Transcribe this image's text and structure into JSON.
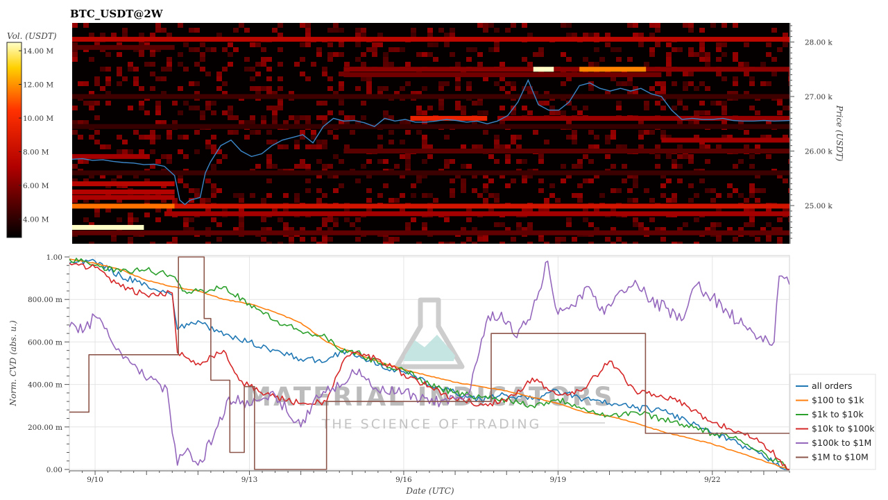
{
  "chart_data": [
    {
      "type": "heatmap",
      "title": "BTC_USDT@2W",
      "ylabel": "Price (USDT)",
      "colorbar_label": "Vol. (USDT)",
      "ylim": [
        24300,
        28350
      ],
      "y_ticks": [
        {
          "value": 25000,
          "label": "25.00 k"
        },
        {
          "value": 26000,
          "label": "26.00 k"
        },
        {
          "value": 27000,
          "label": "27.00 k"
        },
        {
          "value": 28000,
          "label": "28.00 k"
        }
      ],
      "colorbar_range": [
        2900000,
        14500000
      ],
      "colorbar_ticks": [
        {
          "value": 4000000,
          "label": "4.00 M"
        },
        {
          "value": 6000000,
          "label": "6.00 M"
        },
        {
          "value": 8000000,
          "label": "8.00 M"
        },
        {
          "value": 10000000,
          "label": "10.00 M"
        },
        {
          "value": 12000000,
          "label": "12.00 M"
        },
        {
          "value": 14000000,
          "label": "14.00 M"
        }
      ],
      "price_line": {
        "color": "#3a86c8",
        "x": [
          9.5,
          9.7,
          9.9,
          10.1,
          10.3,
          10.5,
          10.7,
          10.9,
          11.1,
          11.3,
          11.5,
          11.6,
          11.7,
          11.8,
          12.0,
          12.1,
          12.2,
          12.4,
          12.6,
          12.8,
          13.0,
          13.2,
          13.4,
          13.6,
          13.8,
          14.0,
          14.2,
          14.4,
          14.6,
          14.8,
          15.0,
          15.2,
          15.4,
          15.6,
          15.8,
          16.0,
          16.2,
          16.4,
          16.6,
          16.8,
          17.0,
          17.2,
          17.4,
          17.6,
          17.8,
          18.0,
          18.2,
          18.4,
          18.6,
          18.8,
          19.0,
          19.2,
          19.4,
          19.6,
          19.8,
          20.0,
          20.2,
          20.4,
          20.6,
          20.8,
          21.0,
          21.2,
          21.4,
          21.6,
          21.8,
          22.0,
          22.2,
          22.4,
          22.6,
          22.8,
          23.0,
          23.2,
          23.5
        ],
        "y": [
          25850,
          25860,
          25830,
          25840,
          25810,
          25790,
          25780,
          25750,
          25760,
          25720,
          25550,
          25100,
          25020,
          25100,
          25150,
          25600,
          25800,
          26100,
          26200,
          26000,
          25900,
          25950,
          26100,
          26200,
          26250,
          26300,
          26150,
          26450,
          26600,
          26550,
          26560,
          26520,
          26450,
          26600,
          26550,
          26580,
          26530,
          26530,
          26550,
          26580,
          26560,
          26530,
          26550,
          26500,
          26550,
          26650,
          26900,
          27300,
          26850,
          26750,
          26750,
          26900,
          27200,
          27250,
          27150,
          27100,
          27150,
          27100,
          27150,
          27050,
          27000,
          26750,
          26580,
          26600,
          26580,
          26580,
          26600,
          26560,
          26550,
          26550,
          26560,
          26550,
          26560
        ]
      },
      "volume_bands": [
        {
          "price": 28050,
          "x_from": 9.5,
          "x_to": 23.5,
          "volume": 7600000
        },
        {
          "price": 27900,
          "x_from": 9.5,
          "x_to": 11.5,
          "volume": 5000000
        },
        {
          "price": 27500,
          "x_from": 14.8,
          "x_to": 23.5,
          "volume": 6200000
        },
        {
          "price": 27500,
          "x_from": 18.5,
          "x_to": 18.9,
          "volume": 14500000
        },
        {
          "price": 27500,
          "x_from": 19.4,
          "x_to": 20.7,
          "volume": 11800000
        },
        {
          "price": 27400,
          "x_from": 14.8,
          "x_to": 21.0,
          "volume": 5600000
        },
        {
          "price": 27000,
          "x_from": 9.5,
          "x_to": 23.5,
          "volume": 4400000
        },
        {
          "price": 26600,
          "x_from": 17.8,
          "x_to": 23.5,
          "volume": 6500000
        },
        {
          "price": 26600,
          "x_from": 16.1,
          "x_to": 17.6,
          "volume": 9500000
        },
        {
          "price": 26450,
          "x_from": 9.5,
          "x_to": 23.5,
          "volume": 4200000
        },
        {
          "price": 26200,
          "x_from": 21.0,
          "x_to": 23.5,
          "volume": 6700000
        },
        {
          "price": 26000,
          "x_from": 14.8,
          "x_to": 23.5,
          "volume": 5000000
        },
        {
          "price": 25900,
          "x_from": 9.5,
          "x_to": 11.0,
          "volume": 6800000
        },
        {
          "price": 25600,
          "x_from": 9.5,
          "x_to": 23.5,
          "volume": 4300000
        },
        {
          "price": 25400,
          "x_from": 9.5,
          "x_to": 11.5,
          "volume": 7500000
        },
        {
          "price": 25250,
          "x_from": 9.5,
          "x_to": 11.5,
          "volume": 7200000
        },
        {
          "price": 25150,
          "x_from": 9.5,
          "x_to": 11.5,
          "volume": 7000000
        },
        {
          "price": 24990,
          "x_from": 9.5,
          "x_to": 11.5,
          "volume": 11500000
        },
        {
          "price": 24990,
          "x_from": 11.5,
          "x_to": 23.5,
          "volume": 8500000
        },
        {
          "price": 24850,
          "x_from": 11.3,
          "x_to": 23.5,
          "volume": 6800000
        },
        {
          "price": 24600,
          "x_from": 9.5,
          "x_to": 10.9,
          "volume": 14500000
        },
        {
          "price": 24500,
          "x_from": 9.5,
          "x_to": 23.5,
          "volume": 5200000
        }
      ]
    },
    {
      "type": "line",
      "xlabel": "Date (UTC)",
      "ylabel": "Norm. CVD (abs. u.)",
      "xlim": [
        9.5,
        23.5
      ],
      "ylim": [
        0,
        1
      ],
      "x_ticks": [
        {
          "value": 10,
          "label": "9/10"
        },
        {
          "value": 13,
          "label": "9/13"
        },
        {
          "value": 16,
          "label": "9/16"
        },
        {
          "value": 19,
          "label": "9/19"
        },
        {
          "value": 22,
          "label": "9/22"
        }
      ],
      "y_ticks": [
        {
          "value": 0,
          "label": "0.00"
        },
        {
          "value": 0.2,
          "label": "200.00 m"
        },
        {
          "value": 0.4,
          "label": "400.00 m"
        },
        {
          "value": 0.6,
          "label": "600.00 m"
        },
        {
          "value": 0.8,
          "label": "800.00 m"
        },
        {
          "value": 1,
          "label": "1.00"
        }
      ],
      "grid": true,
      "legend": "right",
      "series": [
        {
          "name": "all orders",
          "color": "#1f77b4",
          "x": [
            9.5,
            10.0,
            10.5,
            11.0,
            11.5,
            11.6,
            12.0,
            12.5,
            13.0,
            13.5,
            14.0,
            14.5,
            14.8,
            15.0,
            15.5,
            16.0,
            16.5,
            17.0,
            17.5,
            18.0,
            18.5,
            19.0,
            19.5,
            20.0,
            20.5,
            21.0,
            21.5,
            22.0,
            22.5,
            23.0,
            23.5
          ],
          "y": [
            0.97,
            0.98,
            0.91,
            0.87,
            0.82,
            0.66,
            0.7,
            0.63,
            0.6,
            0.56,
            0.52,
            0.51,
            0.56,
            0.55,
            0.49,
            0.46,
            0.4,
            0.36,
            0.33,
            0.35,
            0.33,
            0.37,
            0.33,
            0.31,
            0.29,
            0.28,
            0.23,
            0.17,
            0.12,
            0.06,
            0.0
          ]
        },
        {
          "name": "$100 to $1k",
          "color": "#ff7f0e",
          "x": [
            9.5,
            10.0,
            10.5,
            11.0,
            11.5,
            12.0,
            12.5,
            13.0,
            13.5,
            14.0,
            14.5,
            15.0,
            15.5,
            16.0,
            16.5,
            17.0,
            17.5,
            18.0,
            18.5,
            19.0,
            19.5,
            20.0,
            20.5,
            21.0,
            21.5,
            22.0,
            22.5,
            23.0,
            23.5
          ],
          "y": [
            0.99,
            0.97,
            0.94,
            0.89,
            0.86,
            0.84,
            0.8,
            0.78,
            0.74,
            0.69,
            0.6,
            0.55,
            0.51,
            0.47,
            0.44,
            0.41,
            0.39,
            0.37,
            0.34,
            0.31,
            0.27,
            0.25,
            0.22,
            0.18,
            0.15,
            0.12,
            0.08,
            0.04,
            0.0
          ]
        },
        {
          "name": "$1k to $10k",
          "color": "#2ca02c",
          "x": [
            9.5,
            10.0,
            10.5,
            11.0,
            11.5,
            11.7,
            12.0,
            12.5,
            13.0,
            13.5,
            14.0,
            14.5,
            14.8,
            15.0,
            15.5,
            16.0,
            16.5,
            17.0,
            17.5,
            18.0,
            18.5,
            19.0,
            19.5,
            20.0,
            20.5,
            21.0,
            21.5,
            22.0,
            22.5,
            23.0,
            23.5
          ],
          "y": [
            0.99,
            0.96,
            0.93,
            0.94,
            0.91,
            0.84,
            0.84,
            0.86,
            0.78,
            0.7,
            0.65,
            0.62,
            0.55,
            0.56,
            0.5,
            0.47,
            0.4,
            0.36,
            0.34,
            0.33,
            0.3,
            0.33,
            0.29,
            0.25,
            0.27,
            0.24,
            0.21,
            0.17,
            0.14,
            0.08,
            0.0
          ]
        },
        {
          "name": "$10k to $100k",
          "color": "#d62728",
          "x": [
            9.5,
            10.0,
            10.5,
            11.0,
            11.5,
            11.6,
            12.0,
            12.5,
            12.8,
            13.0,
            13.5,
            14.0,
            14.5,
            14.8,
            15.0,
            15.5,
            16.0,
            16.5,
            17.0,
            17.5,
            18.0,
            18.5,
            19.0,
            19.5,
            20.0,
            20.5,
            21.0,
            21.5,
            22.0,
            22.5,
            23.0,
            23.5
          ],
          "y": [
            0.97,
            0.95,
            0.86,
            0.82,
            0.83,
            0.55,
            0.5,
            0.56,
            0.42,
            0.39,
            0.34,
            0.31,
            0.32,
            0.5,
            0.55,
            0.52,
            0.45,
            0.39,
            0.33,
            0.31,
            0.32,
            0.43,
            0.35,
            0.38,
            0.51,
            0.37,
            0.35,
            0.3,
            0.22,
            0.18,
            0.12,
            0.0
          ]
        },
        {
          "name": "$100k to $1M",
          "color": "#9467bd",
          "x": [
            9.5,
            9.8,
            10.0,
            10.5,
            11.0,
            11.4,
            11.6,
            11.8,
            12.0,
            12.3,
            12.6,
            13.0,
            13.5,
            14.0,
            14.3,
            14.8,
            15.0,
            15.5,
            16.0,
            16.5,
            17.0,
            17.3,
            17.6,
            17.9,
            18.2,
            18.5,
            18.8,
            19.0,
            19.3,
            19.6,
            19.9,
            20.2,
            20.5,
            20.8,
            21.1,
            21.4,
            21.7,
            22.0,
            22.3,
            22.6,
            22.9,
            23.2,
            23.3,
            23.5
          ],
          "y": [
            0.67,
            0.66,
            0.72,
            0.55,
            0.42,
            0.38,
            0.02,
            0.1,
            0.02,
            0.15,
            0.34,
            0.3,
            0.35,
            0.2,
            0.35,
            0.4,
            0.47,
            0.37,
            0.36,
            0.31,
            0.33,
            0.38,
            0.69,
            0.74,
            0.62,
            0.75,
            0.98,
            0.73,
            0.77,
            0.86,
            0.73,
            0.84,
            0.89,
            0.79,
            0.76,
            0.7,
            0.87,
            0.81,
            0.74,
            0.68,
            0.62,
            0.6,
            0.91,
            0.87
          ]
        },
        {
          "name": "$1M to $10M",
          "color": "#8c564b",
          "step": true,
          "x": [
            9.5,
            9.88,
            10.88,
            11.62,
            12.0,
            12.12,
            12.25,
            12.4,
            12.62,
            12.9,
            13.1,
            13.4,
            14.5,
            14.8,
            17.7,
            20.6,
            20.7,
            23.5
          ],
          "y": [
            0.27,
            0.54,
            0.54,
            1.0,
            1.0,
            0.71,
            0.42,
            0.42,
            0.08,
            0.39,
            0.0,
            0.0,
            0.32,
            0.32,
            0.64,
            0.64,
            0.17,
            0.17
          ]
        }
      ]
    }
  ],
  "watermark": {
    "name": "MATERIAL INDICATORS",
    "tagline": "THE SCIENCE OF TRADING"
  }
}
